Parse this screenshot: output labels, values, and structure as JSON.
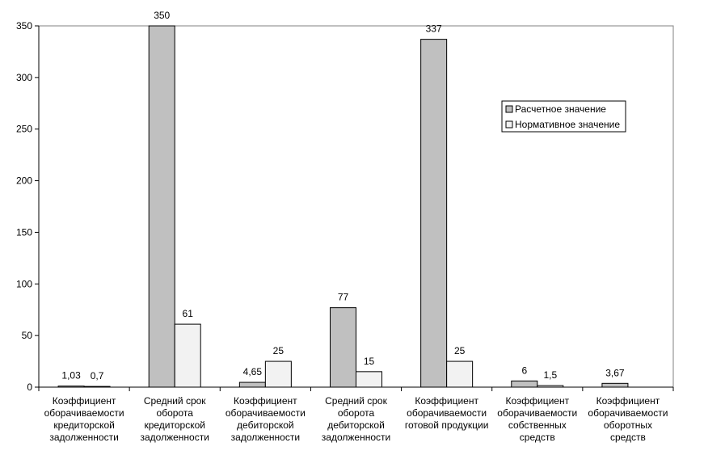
{
  "chart_data": {
    "type": "bar",
    "categories": [
      [
        "Коэффициент",
        "оборачиваемости",
        "кредиторской",
        "задолженности"
      ],
      [
        "Средний срок",
        "оборота",
        "кредиторской",
        "задолженности"
      ],
      [
        "Коэффициент",
        "оборачиваемости",
        "дебиторской",
        "задолженности"
      ],
      [
        "Средний срок",
        "оборота",
        "дебиторской",
        "задолженности"
      ],
      [
        "Коэффициент",
        "оборачиваемости",
        "готовой продукции"
      ],
      [
        "Коэффициент",
        "оборачиваемости",
        "собственных",
        "средств"
      ],
      [
        "Коэффициент",
        "оборачиваемости",
        "оборотных",
        "средств"
      ]
    ],
    "series": [
      {
        "name": "Расчетное значение",
        "color": "#c0c0c0",
        "values": [
          1.03,
          350,
          4.65,
          77,
          337,
          6,
          3.67
        ],
        "labels": [
          "1,03",
          "350",
          "4,65",
          "77",
          "337",
          "6",
          "3,67"
        ]
      },
      {
        "name": "Нормативное значение",
        "color": "#f2f2f2",
        "values": [
          0.7,
          61,
          25,
          15,
          25,
          1.5,
          null
        ],
        "labels": [
          "0,7",
          "61",
          "25",
          "15",
          "25",
          "1,5",
          ""
        ]
      }
    ],
    "yticks": [
      "0",
      "50",
      "100",
      "150",
      "200",
      "250",
      "300",
      "350"
    ],
    "ylim": [
      0,
      350
    ],
    "grid": false,
    "legend_position": "right"
  }
}
